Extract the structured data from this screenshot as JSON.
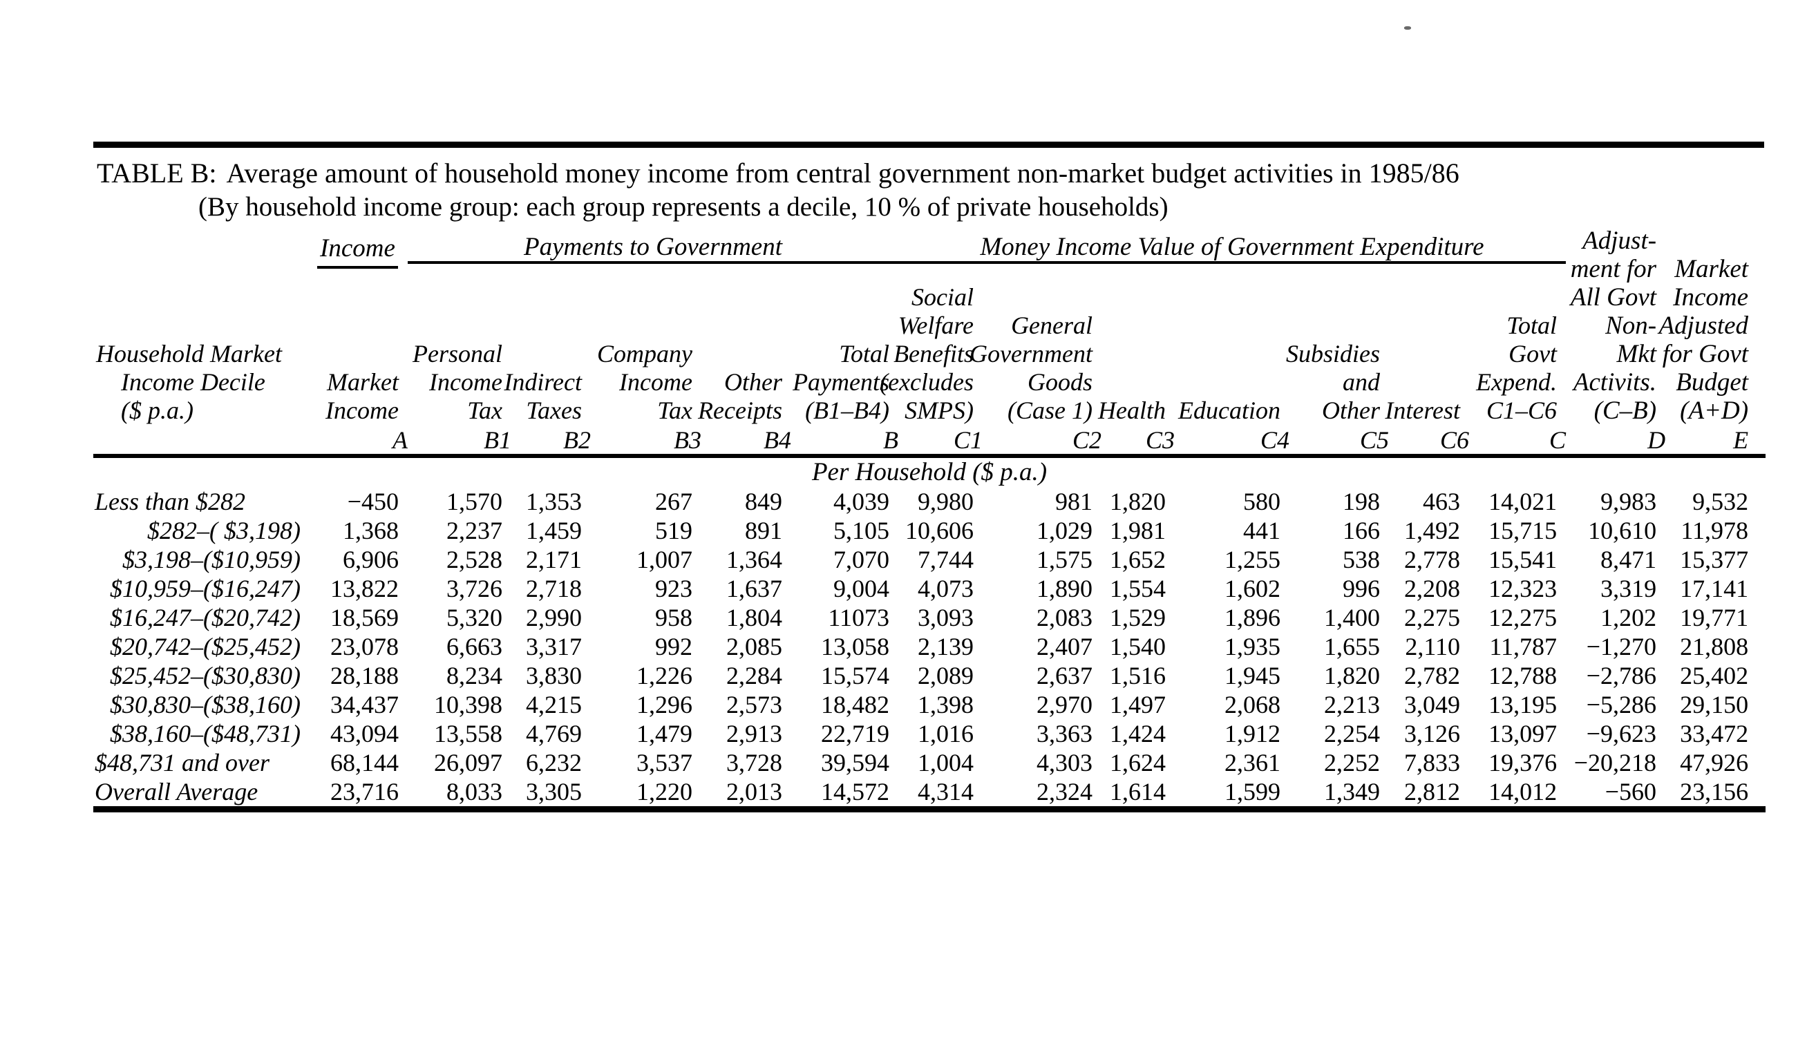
{
  "page": {
    "title_label": "TABLE B:",
    "title": "Average amount of household money income from central government non-market budget activities in 1985/86",
    "subtitle": "(By household income group: each group represents a decile, 10 % of private households)"
  },
  "table": {
    "groups": {
      "income": "Income",
      "payments_to_government": "Payments to Government",
      "money_income_value": "Money Income Value of Government Expenditure"
    },
    "unit_note": "Per Household ($ p.a.)",
    "columns": [
      {
        "id": "stub",
        "header_lines": [
          "Household Market",
          "Income Decile",
          "($ p.a.)"
        ],
        "code": ""
      },
      {
        "id": "A",
        "header_lines": [
          "Market",
          "Income"
        ],
        "code": "A"
      },
      {
        "id": "B1",
        "header_lines": [
          "Personal",
          "Income",
          "Tax"
        ],
        "code": "B1"
      },
      {
        "id": "B2",
        "header_lines": [
          "Indirect",
          "Taxes"
        ],
        "code": "B2"
      },
      {
        "id": "B3",
        "header_lines": [
          "Company",
          "Income",
          "Tax"
        ],
        "code": "B3"
      },
      {
        "id": "B4",
        "header_lines": [
          "Other",
          "Receipts"
        ],
        "code": "B4"
      },
      {
        "id": "B",
        "header_lines": [
          "Total",
          "Payments",
          "(B1–B4)"
        ],
        "code": "B"
      },
      {
        "id": "C1",
        "header_lines": [
          "Social",
          "Welfare",
          "Benefits",
          "(excludes",
          "SMPS)"
        ],
        "code": "C1"
      },
      {
        "id": "C2",
        "header_lines": [
          "General",
          "Government",
          "Goods",
          "(Case 1)"
        ],
        "code": "C2"
      },
      {
        "id": "C3",
        "header_lines": [
          "Health"
        ],
        "code": "C3"
      },
      {
        "id": "C4",
        "header_lines": [
          "Education"
        ],
        "code": "C4"
      },
      {
        "id": "C5",
        "header_lines": [
          "Subsidies",
          "and",
          "Other"
        ],
        "code": "C5"
      },
      {
        "id": "C6",
        "header_lines": [
          "Interest"
        ],
        "code": "C6"
      },
      {
        "id": "C",
        "header_lines": [
          "Total",
          "Govt",
          "Expend.",
          "C1–C6"
        ],
        "code": "C"
      },
      {
        "id": "D",
        "header_lines": [
          "Adjust-",
          "ment for",
          "All Govt",
          "Non-",
          "Mkt",
          "Activits.",
          "(C–B)"
        ],
        "code": "D"
      },
      {
        "id": "E",
        "header_lines": [
          "Market",
          "Income",
          "Adjusted",
          "for Govt",
          "Budget",
          "(A+D)"
        ],
        "code": "E"
      }
    ],
    "rows": [
      {
        "label": "Less than $282",
        "label_align": "left",
        "values": [
          "−450",
          "1,570",
          "1,353",
          "267",
          "849",
          "4,039",
          "9,980",
          "981",
          "1,820",
          "580",
          "198",
          "463",
          "14,021",
          "9,983",
          "9,532"
        ]
      },
      {
        "label": "$282–( $3,198)",
        "label_align": "right",
        "values": [
          "1,368",
          "2,237",
          "1,459",
          "519",
          "891",
          "5,105",
          "10,606",
          "1,029",
          "1,981",
          "441",
          "166",
          "1,492",
          "15,715",
          "10,610",
          "11,978"
        ]
      },
      {
        "label": "$3,198–($10,959)",
        "label_align": "right",
        "values": [
          "6,906",
          "2,528",
          "2,171",
          "1,007",
          "1,364",
          "7,070",
          "7,744",
          "1,575",
          "1,652",
          "1,255",
          "538",
          "2,778",
          "15,541",
          "8,471",
          "15,377"
        ]
      },
      {
        "label": "$10,959–($16,247)",
        "label_align": "right",
        "values": [
          "13,822",
          "3,726",
          "2,718",
          "923",
          "1,637",
          "9,004",
          "4,073",
          "1,890",
          "1,554",
          "1,602",
          "996",
          "2,208",
          "12,323",
          "3,319",
          "17,141"
        ]
      },
      {
        "label": "$16,247–($20,742)",
        "label_align": "right",
        "values": [
          "18,569",
          "5,320",
          "2,990",
          "958",
          "1,804",
          "11073",
          "3,093",
          "2,083",
          "1,529",
          "1,896",
          "1,400",
          "2,275",
          "12,275",
          "1,202",
          "19,771"
        ]
      },
      {
        "label": "$20,742–($25,452)",
        "label_align": "right",
        "values": [
          "23,078",
          "6,663",
          "3,317",
          "992",
          "2,085",
          "13,058",
          "2,139",
          "2,407",
          "1,540",
          "1,935",
          "1,655",
          "2,110",
          "11,787",
          "−1,270",
          "21,808"
        ]
      },
      {
        "label": "$25,452–($30,830)",
        "label_align": "right",
        "values": [
          "28,188",
          "8,234",
          "3,830",
          "1,226",
          "2,284",
          "15,574",
          "2,089",
          "2,637",
          "1,516",
          "1,945",
          "1,820",
          "2,782",
          "12,788",
          "−2,786",
          "25,402"
        ]
      },
      {
        "label": "$30,830–($38,160)",
        "label_align": "right",
        "values": [
          "34,437",
          "10,398",
          "4,215",
          "1,296",
          "2,573",
          "18,482",
          "1,398",
          "2,970",
          "1,497",
          "2,068",
          "2,213",
          "3,049",
          "13,195",
          "−5,286",
          "29,150"
        ]
      },
      {
        "label": "$38,160–($48,731)",
        "label_align": "right",
        "values": [
          "43,094",
          "13,558",
          "4,769",
          "1,479",
          "2,913",
          "22,719",
          "1,016",
          "3,363",
          "1,424",
          "1,912",
          "2,254",
          "3,126",
          "13,097",
          "−9,623",
          "33,472"
        ]
      },
      {
        "label": "$48,731 and over",
        "label_align": "left",
        "values": [
          "68,144",
          "26,097",
          "6,232",
          "3,537",
          "3,728",
          "39,594",
          "1,004",
          "4,303",
          "1,624",
          "2,361",
          "2,252",
          "7,833",
          "19,376",
          "−20,218",
          "47,926"
        ]
      },
      {
        "label": "Overall Average",
        "label_align": "left",
        "values": [
          "23,716",
          "8,033",
          "3,305",
          "1,220",
          "2,013",
          "14,572",
          "4,314",
          "2,324",
          "1,614",
          "1,599",
          "1,349",
          "2,812",
          "14,012",
          "−560",
          "23,156"
        ]
      }
    ]
  }
}
